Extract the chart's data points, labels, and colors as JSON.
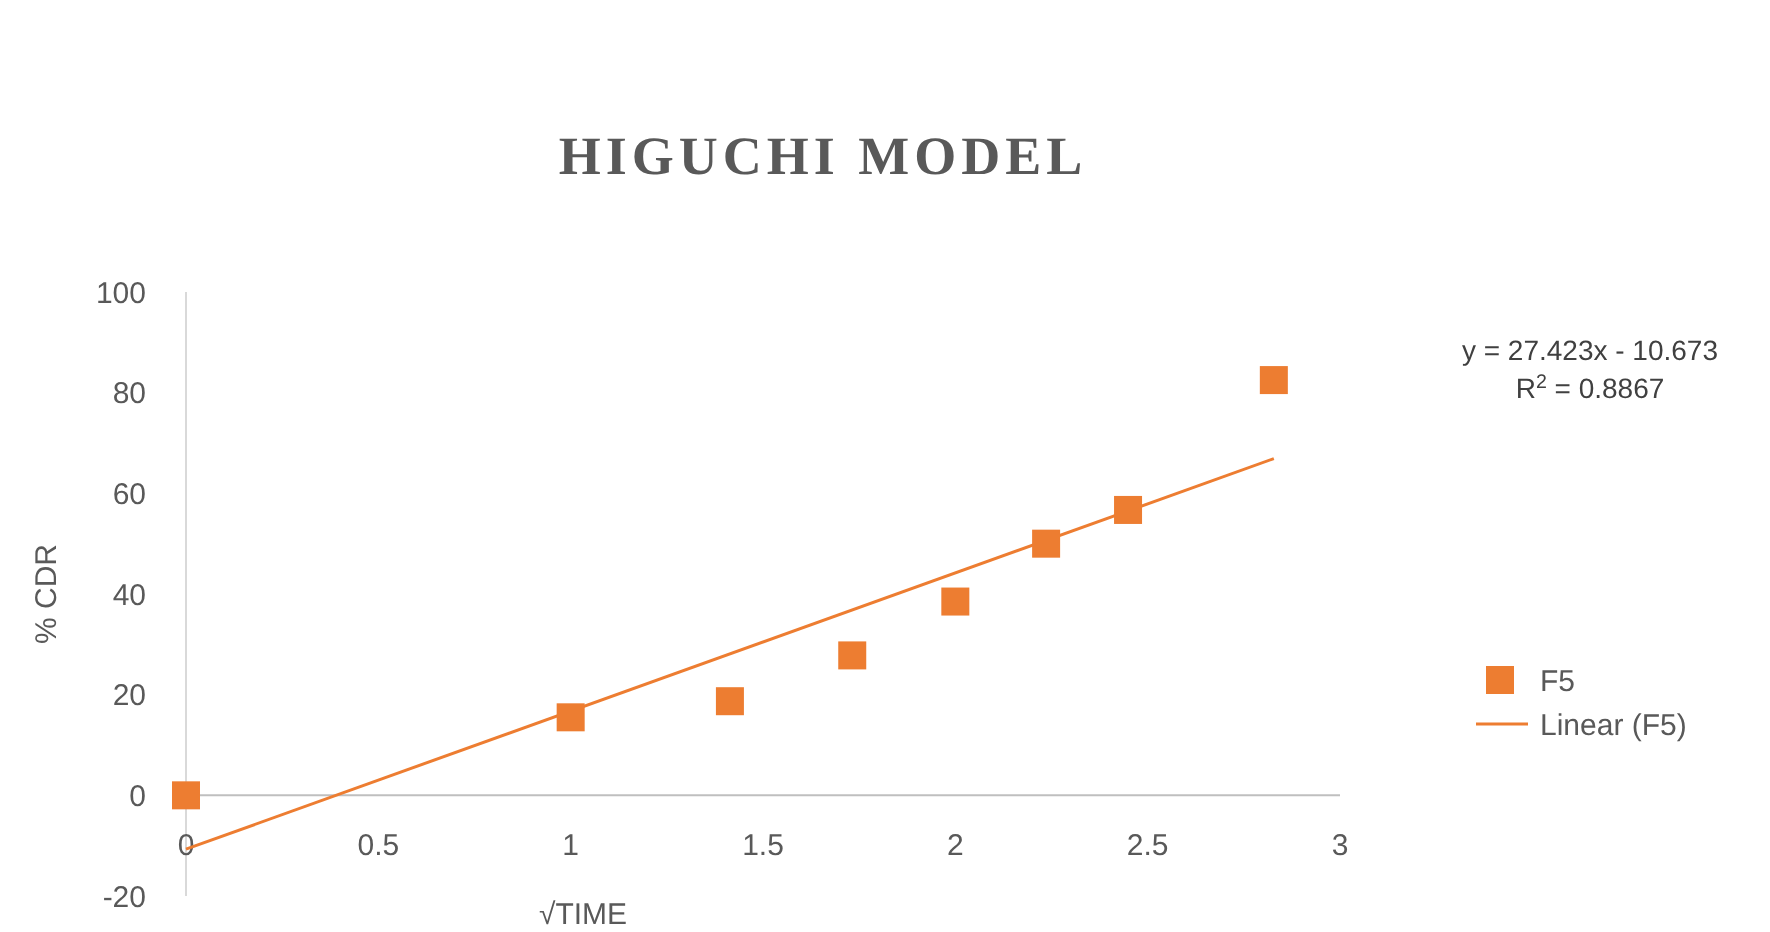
{
  "chart_data": {
    "type": "scatter",
    "title": "HIGUCHI MODEL",
    "xlabel": "√TIME",
    "ylabel": "% CDR",
    "xlim": [
      0,
      3
    ],
    "xticks": [
      0,
      0.5,
      1,
      1.5,
      2,
      2.5,
      3
    ],
    "ylim": [
      -20,
      100
    ],
    "yticks": [
      -20,
      0,
      20,
      40,
      60,
      80,
      100
    ],
    "legend": "right",
    "grid": false,
    "annotations": [
      "y = 27.423x - 10.673",
      "R$^{2}$ = 0.8867"
    ],
    "series": [
      {
        "name": "F5",
        "marker": "square",
        "color": "#ed7d31",
        "x": [
          0,
          1,
          1.414,
          1.732,
          2,
          2.236,
          2.449,
          2.828
        ],
        "values": [
          0,
          15.5,
          18.7,
          27.8,
          38.5,
          50,
          56.7,
          82.5
        ]
      },
      {
        "name": "Linear (F5)",
        "type": "line",
        "marker": "none",
        "color": "#ed7d31",
        "x": [
          0,
          2.828
        ],
        "values": [
          -10.7,
          66.9
        ]
      }
    ]
  }
}
